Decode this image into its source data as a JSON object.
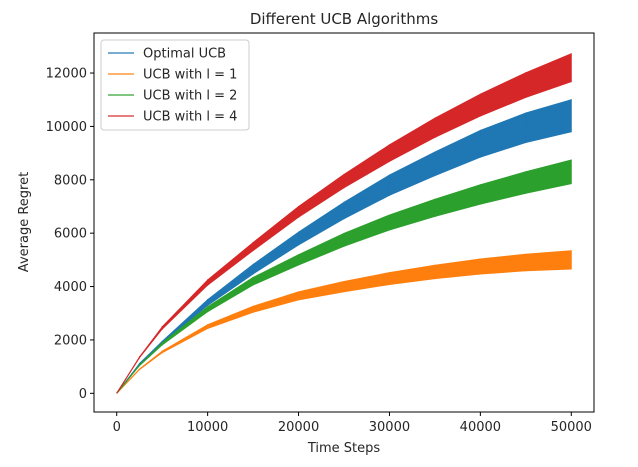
{
  "chart_data": {
    "type": "line",
    "title": "Different UCB Algorithms",
    "xlabel": "Time Steps",
    "ylabel": "Average Regret",
    "xlim": [
      -2500,
      52500
    ],
    "ylim": [
      -700,
      13500
    ],
    "xticks": [
      0,
      10000,
      20000,
      30000,
      40000,
      50000
    ],
    "yticks": [
      0,
      2000,
      4000,
      6000,
      8000,
      10000,
      12000
    ],
    "grid": false,
    "legend_position": "upper-left",
    "series": [
      {
        "name": "Optimal UCB",
        "color": "#1f77b4",
        "x": [
          0,
          2500,
          5000,
          10000,
          15000,
          20000,
          25000,
          30000,
          35000,
          40000,
          45000,
          50000
        ],
        "y": [
          0,
          1100,
          1900,
          3400,
          4650,
          5800,
          6850,
          7800,
          8600,
          9350,
          9950,
          10400
        ],
        "spread": [
          0,
          40,
          70,
          130,
          200,
          260,
          330,
          400,
          460,
          520,
          570,
          620
        ]
      },
      {
        "name": "UCB with l = 1",
        "color": "#ff7f0e",
        "x": [
          0,
          2500,
          5000,
          10000,
          15000,
          20000,
          25000,
          30000,
          35000,
          40000,
          45000,
          50000
        ],
        "y": [
          0,
          900,
          1550,
          2500,
          3150,
          3650,
          4000,
          4300,
          4550,
          4750,
          4900,
          5000
        ],
        "spread": [
          0,
          30,
          50,
          90,
          130,
          170,
          210,
          240,
          270,
          300,
          330,
          360
        ]
      },
      {
        "name": "UCB with l = 2",
        "color": "#2ca02c",
        "x": [
          0,
          2500,
          5000,
          10000,
          15000,
          20000,
          25000,
          30000,
          35000,
          40000,
          45000,
          50000
        ],
        "y": [
          0,
          1050,
          1850,
          3150,
          4200,
          5000,
          5750,
          6400,
          6950,
          7450,
          7900,
          8300
        ],
        "spread": [
          0,
          35,
          60,
          110,
          160,
          210,
          260,
          300,
          340,
          380,
          420,
          460
        ]
      },
      {
        "name": "UCB with l = 4",
        "color": "#d62728",
        "x": [
          0,
          2500,
          5000,
          10000,
          15000,
          20000,
          25000,
          30000,
          35000,
          40000,
          45000,
          50000
        ],
        "y": [
          0,
          1350,
          2450,
          4150,
          5500,
          6800,
          7950,
          9000,
          9950,
          10800,
          11550,
          12200
        ],
        "spread": [
          0,
          40,
          70,
          120,
          170,
          220,
          270,
          330,
          380,
          430,
          480,
          540
        ]
      }
    ]
  }
}
